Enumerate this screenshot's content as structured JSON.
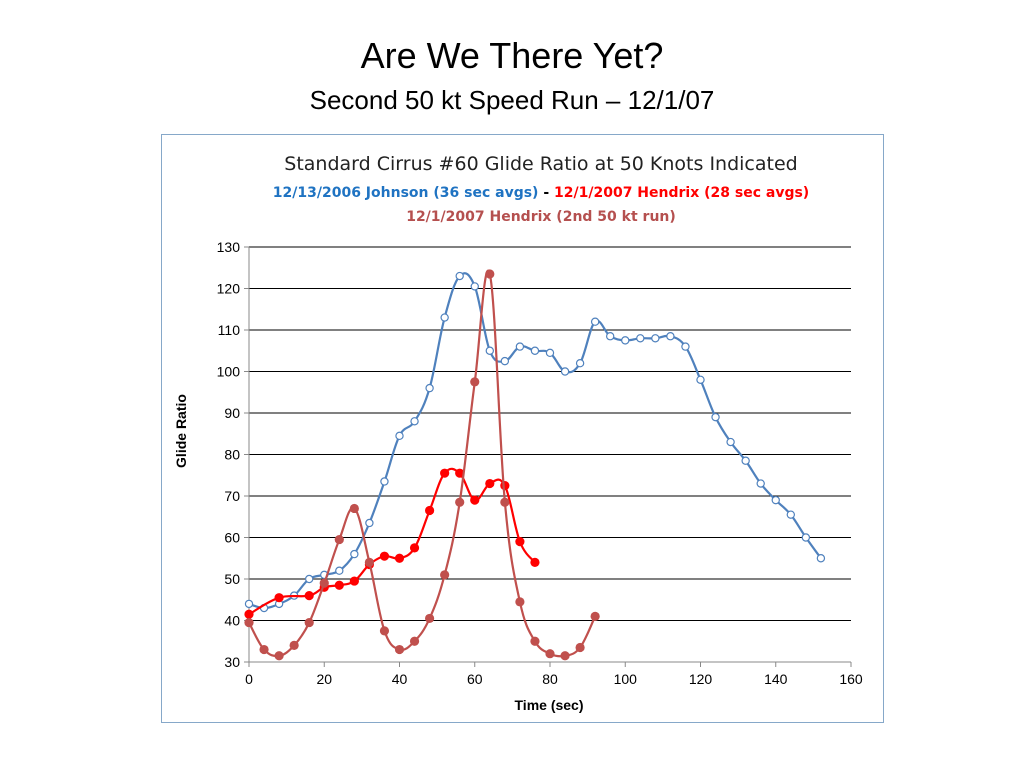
{
  "slide": {
    "title": "Are We There Yet?",
    "subtitle": "Second 50 kt Speed Run – 12/1/07"
  },
  "chart_data": {
    "type": "line",
    "title": "Standard Cirrus #60 Glide Ratio at 50 Knots Indicated",
    "subtitle_parts": [
      {
        "text": "12/13/2006 Johnson (36 sec avgs)",
        "color": "#1f73c2"
      },
      {
        "text": " - ",
        "color": "#000000"
      },
      {
        "text": "12/1/2007 Hendrix (28 sec avgs)",
        "color": "#ff0000"
      }
    ],
    "subtitle2": {
      "text": "12/1/2007 Hendrix (2nd 50 kt run)",
      "color": "#b5504f"
    },
    "xlabel": "Time (sec)",
    "ylabel": "Glide Ratio",
    "xlim": [
      0,
      160
    ],
    "ylim": [
      30,
      130
    ],
    "xticks": [
      0,
      20,
      40,
      60,
      80,
      100,
      120,
      140,
      160
    ],
    "yticks": [
      30,
      40,
      50,
      60,
      70,
      80,
      90,
      100,
      110,
      120,
      130
    ],
    "grid": "horizontal",
    "legend": "none",
    "series": [
      {
        "key": "johnson",
        "color": "#4f81bd",
        "marker": "open-circle",
        "points": [
          [
            0,
            44
          ],
          [
            4,
            43
          ],
          [
            8,
            44
          ],
          [
            12,
            46
          ],
          [
            16,
            50
          ],
          [
            20,
            51
          ],
          [
            24,
            52
          ],
          [
            28,
            56
          ],
          [
            32,
            63.5
          ],
          [
            36,
            73.5
          ],
          [
            40,
            84.5
          ],
          [
            44,
            88
          ],
          [
            48,
            96
          ],
          [
            52,
            113
          ],
          [
            56,
            123
          ],
          [
            60,
            120.5
          ],
          [
            64,
            105
          ],
          [
            68,
            102.5
          ],
          [
            72,
            106
          ],
          [
            76,
            105
          ],
          [
            80,
            104.5
          ],
          [
            84,
            100
          ],
          [
            88,
            102
          ],
          [
            92,
            112
          ],
          [
            96,
            108.5
          ],
          [
            100,
            107.5
          ],
          [
            104,
            108
          ],
          [
            108,
            108
          ],
          [
            112,
            108.5
          ],
          [
            116,
            106
          ],
          [
            120,
            98
          ],
          [
            124,
            89
          ],
          [
            128,
            83
          ],
          [
            132,
            78.5
          ],
          [
            136,
            73
          ],
          [
            140,
            69
          ],
          [
            144,
            65.5
          ],
          [
            148,
            60
          ],
          [
            152,
            55
          ]
        ]
      },
      {
        "key": "hendrix1",
        "color": "#ff0000",
        "marker": "filled-circle",
        "points": [
          [
            0,
            41.5
          ],
          [
            8,
            45.5
          ],
          [
            16,
            46
          ],
          [
            20,
            48
          ],
          [
            24,
            48.5
          ],
          [
            28,
            49.5
          ],
          [
            32,
            53.5
          ],
          [
            36,
            55.5
          ],
          [
            40,
            55
          ],
          [
            44,
            57.5
          ],
          [
            48,
            66.5
          ],
          [
            52,
            75.5
          ],
          [
            56,
            75.5
          ],
          [
            60,
            69
          ],
          [
            64,
            73
          ],
          [
            68,
            72.5
          ],
          [
            72,
            59
          ],
          [
            76,
            54
          ]
        ]
      },
      {
        "key": "hendrix2",
        "color": "#c0504d",
        "marker": "filled-circle",
        "points": [
          [
            0,
            39.5
          ],
          [
            4,
            33
          ],
          [
            8,
            31.5
          ],
          [
            12,
            34
          ],
          [
            16,
            39.5
          ],
          [
            20,
            49
          ],
          [
            24,
            59.5
          ],
          [
            28,
            67
          ],
          [
            32,
            54
          ],
          [
            36,
            37.5
          ],
          [
            40,
            33
          ],
          [
            44,
            35
          ],
          [
            48,
            40.5
          ],
          [
            52,
            51
          ],
          [
            56,
            68.5
          ],
          [
            60,
            97.5
          ],
          [
            64,
            123.5
          ],
          [
            68,
            68.5
          ],
          [
            72,
            44.5
          ],
          [
            76,
            35
          ],
          [
            80,
            32
          ],
          [
            84,
            31.5
          ],
          [
            88,
            33.5
          ],
          [
            92,
            41
          ]
        ]
      }
    ]
  }
}
